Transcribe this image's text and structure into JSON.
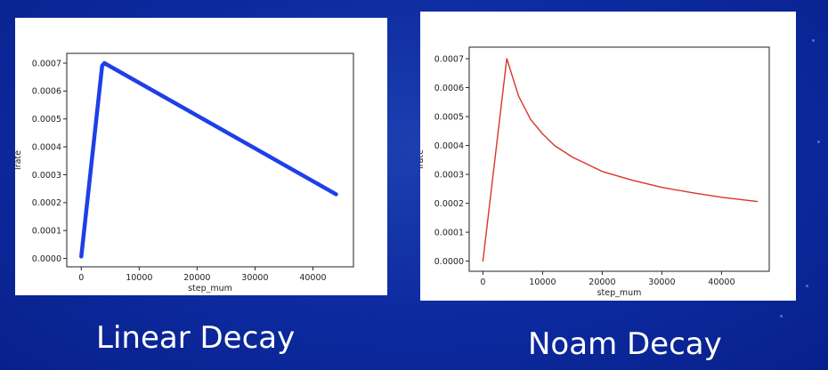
{
  "captions": {
    "left": "Linear Decay",
    "right": "Noam Decay"
  },
  "chart_data": [
    {
      "type": "line",
      "title": "",
      "xlabel": "step_mum",
      "ylabel": "lrate",
      "xlim": [
        -2500,
        47000
      ],
      "ylim": [
        -3e-05,
        0.000735
      ],
      "x_ticks": [
        0,
        10000,
        20000,
        30000,
        40000
      ],
      "x_tick_labels": [
        "0",
        "10000",
        "20000",
        "30000",
        "40000"
      ],
      "y_ticks": [
        0,
        0.0001,
        0.0002,
        0.0003,
        0.0004,
        0.0005,
        0.0006,
        0.0007
      ],
      "y_tick_labels": [
        "0.0000",
        "0.0001",
        "0.0002",
        "0.0003",
        "0.0004",
        "0.0005",
        "0.0006",
        "0.0007"
      ],
      "grid": false,
      "color": "#1f3fe6",
      "series": [
        {
          "x": [
            0,
            3600,
            4000,
            44000
          ],
          "y": [
            7e-06,
            0.00069,
            0.0007,
            0.00023
          ]
        }
      ]
    },
    {
      "type": "line",
      "title": "",
      "xlabel": "step_mum",
      "ylabel": "lrate",
      "xlim": [
        -2300,
        48000
      ],
      "ylim": [
        -3.5e-05,
        0.00074
      ],
      "x_ticks": [
        0,
        10000,
        20000,
        30000,
        40000
      ],
      "x_tick_labels": [
        "0",
        "10000",
        "20000",
        "30000",
        "40000"
      ],
      "y_ticks": [
        0,
        0.0001,
        0.0002,
        0.0003,
        0.0004,
        0.0005,
        0.0006,
        0.0007
      ],
      "y_tick_labels": [
        "0.0000",
        "0.0001",
        "0.0002",
        "0.0003",
        "0.0004",
        "0.0005",
        "0.0006",
        "0.0007"
      ],
      "grid": false,
      "color": "#d9342b",
      "series": [
        {
          "x": [
            0,
            4000,
            6000,
            8000,
            10000,
            12000,
            15000,
            20000,
            25000,
            30000,
            35000,
            40000,
            46000
          ],
          "y": [
            0,
            0.0007,
            0.00057,
            0.00049,
            0.00044,
            0.0004,
            0.00036,
            0.00031,
            0.00028,
            0.000255,
            0.000237,
            0.000221,
            0.000206
          ]
        }
      ]
    }
  ]
}
